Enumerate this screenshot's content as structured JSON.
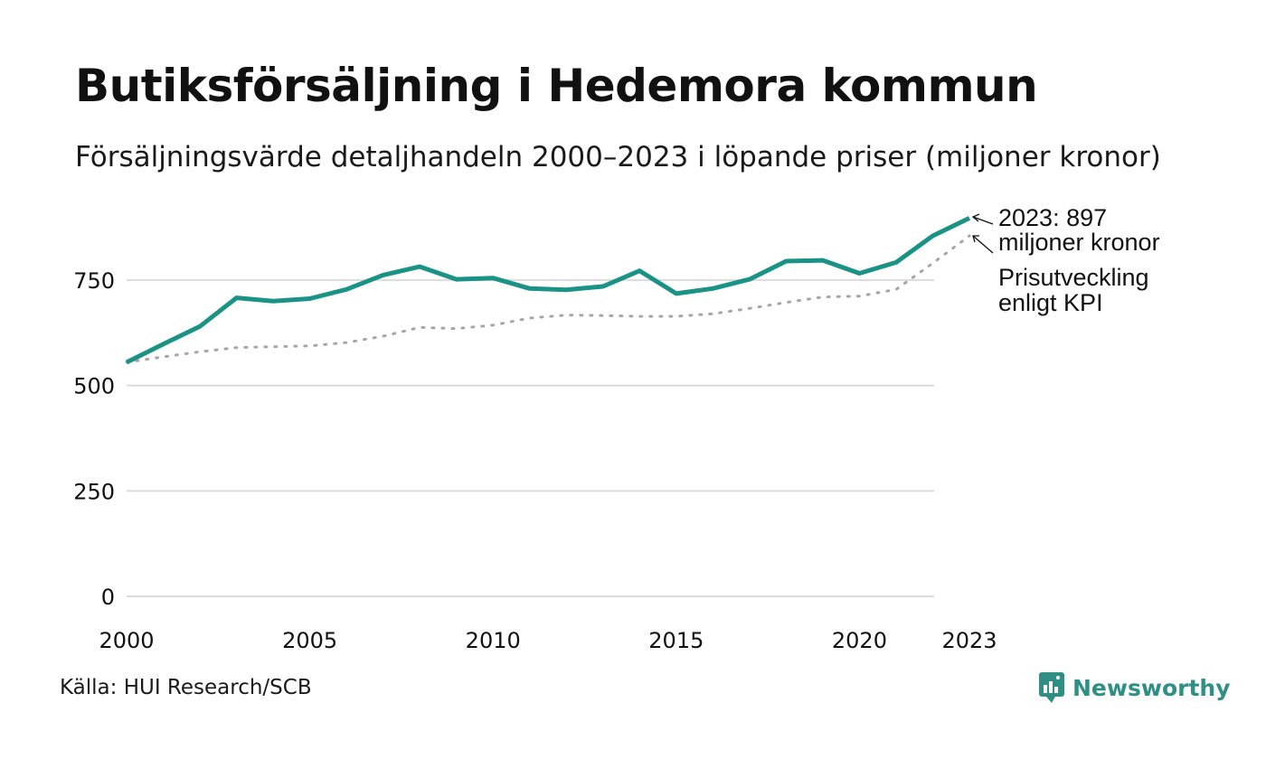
{
  "title": "Butiksförsäljning i Hedemora kommun",
  "subtitle": "Försäljningsvärde detaljhandeln 2000–2023 i löpande priser (miljoner kronor)",
  "source": "Källa: HUI Research/SCB",
  "brand": {
    "name": "Newsworthy",
    "icon": "newsworthy-logo-icon"
  },
  "colors": {
    "sales": "#1a9386",
    "kpi": "#a6a6a6",
    "grid": "#dddddd"
  },
  "chart_data": {
    "type": "line",
    "title": "Butiksförsäljning i Hedemora kommun",
    "xlabel": "",
    "ylabel": "",
    "x": [
      2000,
      2001,
      2002,
      2003,
      2004,
      2005,
      2006,
      2007,
      2008,
      2009,
      2010,
      2011,
      2012,
      2013,
      2014,
      2015,
      2016,
      2017,
      2018,
      2019,
      2020,
      2021,
      2022,
      2023
    ],
    "series": [
      {
        "name": "Försäljningsvärde",
        "style": "solid",
        "values": [
          555,
          598,
          640,
          708,
          700,
          706,
          728,
          762,
          782,
          752,
          755,
          730,
          727,
          735,
          772,
          718,
          730,
          752,
          795,
          797,
          766,
          792,
          855,
          897
        ]
      },
      {
        "name": "Prisutveckling enligt KPI",
        "style": "dotted",
        "values": [
          555,
          568,
          580,
          590,
          592,
          594,
          602,
          617,
          638,
          635,
          643,
          660,
          667,
          666,
          664,
          664,
          670,
          683,
          697,
          710,
          712,
          728,
          790,
          855
        ]
      }
    ],
    "xticks": [
      "2000",
      "2005",
      "2010",
      "2015",
      "2020",
      "2023"
    ],
    "yticks": [
      "0",
      "250",
      "500",
      "750"
    ],
    "ylim": [
      0,
      900
    ],
    "xlim": [
      2000,
      2023
    ],
    "grid": true,
    "annotations": {
      "last_value_line1": "2023: 897",
      "last_value_line2": "miljoner kronor",
      "kpi_line1": "Prisutveckling",
      "kpi_line2": "enligt KPI"
    }
  }
}
